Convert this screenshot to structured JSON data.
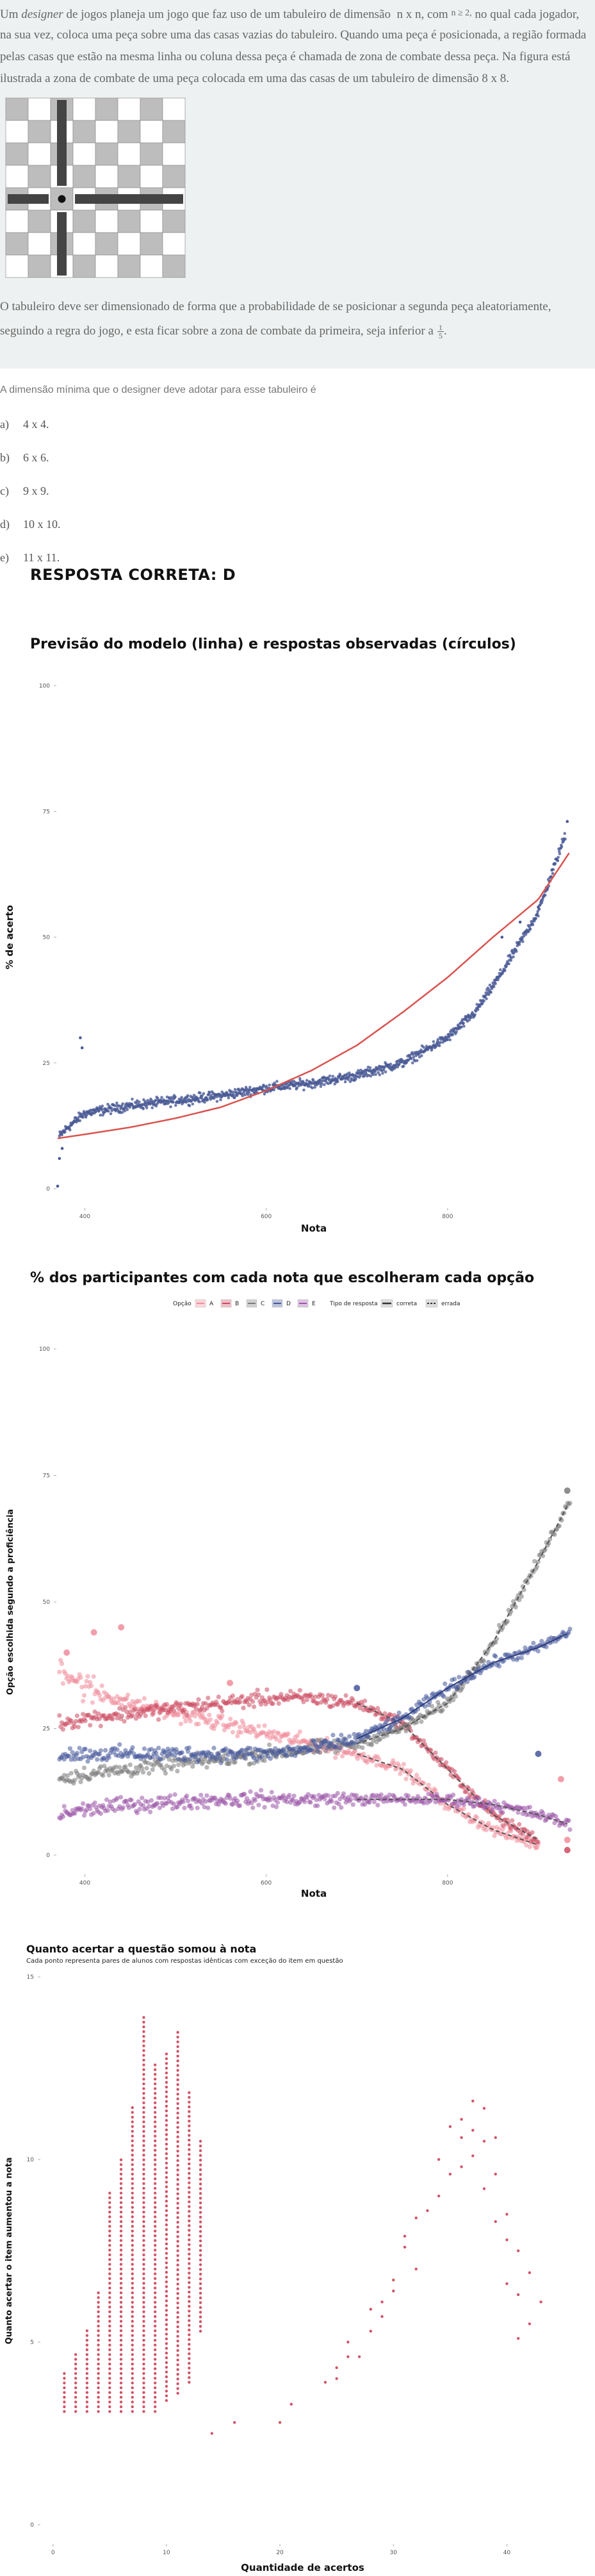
{
  "question": {
    "intro_prefix": "Um ",
    "intro_designer": "designer",
    "intro_part1": " de jogos planeja um jogo que faz uso de um tabuleiro de dimensão",
    "intro_nxn": "n x n, com",
    "intro_cond": "n ≥ 2,",
    "intro_part2": " no qual cada jogador,",
    "line2": "na sua vez, coloca uma peça sobre uma das casas vazias do tabuleiro. Quando uma peça é posicionada, a região formada",
    "line3": "pelas casas que estão na mesma linha ou coluna dessa peça é chamada de zona de combate dessa peça. Na figura está",
    "line4": "ilustrada a zona de combate de uma peça colocada em uma das casas de um tabuleiro de dimensão 8 x 8.",
    "para2_line1": "O tabuleiro deve ser dimensionado de forma que a probabilidade de se posicionar a segunda peça aleatoriamente,",
    "para2_line2": "seguindo a regra do jogo, e esta ficar sobre a zona de combate da primeira, seja inferior a",
    "frac_num": "1",
    "frac_den": "5",
    "para2_end": ".",
    "prompt": "A dimensão mínima que o designer deve adotar para esse tabuleiro é",
    "options": [
      {
        "letter": "a)",
        "text": "4 x 4."
      },
      {
        "letter": "b)",
        "text": "6 x 6."
      },
      {
        "letter": "c)",
        "text": "9 x 9."
      },
      {
        "letter": "d)",
        "text": "10 x 10."
      },
      {
        "letter": "e)",
        "text": "11 x 11."
      }
    ],
    "answer": "RESPOSTA CORRETA: D"
  },
  "chart_data": [
    {
      "type": "scatter",
      "title": "Previsão do modelo (linha) e respostas observadas (círculos)",
      "xlabel": "Nota",
      "ylabel": "% de acerto",
      "xticks": [
        "400",
        "600",
        "800"
      ],
      "yticks": [
        "0",
        "25",
        "50",
        "75",
        "100"
      ],
      "xlim": [
        370,
        935
      ],
      "ylim": [
        0,
        100
      ],
      "colors": {
        "points": "#4a5a95",
        "model": "#d9534f"
      },
      "model_curve": {
        "x": [
          370,
          400,
          450,
          500,
          550,
          600,
          650,
          700,
          750,
          800,
          850,
          900,
          935
        ],
        "y": [
          10,
          10.8,
          12.2,
          14,
          16.2,
          19.5,
          23.5,
          28.5,
          35,
          42,
          50,
          57.5,
          67
        ]
      },
      "observed_trend": {
        "x": [
          370,
          380,
          400,
          450,
          500,
          550,
          600,
          650,
          700,
          750,
          800,
          830,
          860,
          900,
          935
        ],
        "y": [
          10,
          12,
          15,
          16.5,
          17.5,
          18.5,
          20,
          21,
          22.5,
          25,
          30,
          35,
          43,
          55,
          73
        ]
      }
    },
    {
      "type": "scatter",
      "title": "% dos participantes com cada nota que escolheram cada opção",
      "xlabel": "Nota",
      "ylabel": "Opção escolhida segundo a proficiência",
      "xticks": [
        "400",
        "600",
        "800"
      ],
      "yticks": [
        "0",
        "25",
        "50",
        "75",
        "100"
      ],
      "xlim": [
        370,
        935
      ],
      "ylim": [
        0,
        100
      ],
      "legend": {
        "option_title": "Opção",
        "options": [
          {
            "name": "A",
            "color": "#f08d9b"
          },
          {
            "name": "B",
            "color": "#cc4a60"
          },
          {
            "name": "C",
            "color": "#7a7a7a"
          },
          {
            "name": "D",
            "color": "#46579a"
          },
          {
            "name": "E",
            "color": "#9b55a8"
          }
        ],
        "type_title": "Tipo de resposta",
        "types": [
          "correta",
          "errada"
        ]
      },
      "series": [
        {
          "name": "A",
          "x": [
            370,
            400,
            450,
            500,
            550,
            600,
            650,
            700,
            750,
            800,
            850,
            900
          ],
          "y": [
            38,
            33,
            30,
            28,
            26,
            24,
            22,
            20,
            17,
            10,
            5,
            2
          ]
        },
        {
          "name": "B",
          "x": [
            370,
            400,
            450,
            500,
            550,
            600,
            650,
            700,
            750,
            800,
            850,
            900
          ],
          "y": [
            26,
            27,
            28,
            29,
            30,
            31,
            31,
            30,
            26,
            17,
            8,
            3
          ]
        },
        {
          "name": "C",
          "x": [
            370,
            400,
            450,
            500,
            550,
            600,
            650,
            700,
            750,
            800,
            850,
            900,
            935
          ],
          "y": [
            15,
            16,
            17,
            18,
            19,
            20,
            21,
            22,
            25,
            30,
            42,
            58,
            70
          ]
        },
        {
          "name": "D",
          "x": [
            370,
            400,
            450,
            500,
            550,
            600,
            650,
            700,
            750,
            800,
            850,
            900,
            935
          ],
          "y": [
            20,
            20,
            20,
            20,
            20,
            20,
            21,
            23,
            27,
            33,
            38,
            41,
            44
          ]
        },
        {
          "name": "E",
          "x": [
            370,
            400,
            450,
            500,
            550,
            600,
            650,
            700,
            750,
            800,
            850,
            900,
            935
          ],
          "y": [
            8,
            9,
            10,
            10.5,
            11,
            11,
            11,
            11,
            11,
            11,
            10,
            8,
            6
          ]
        }
      ]
    },
    {
      "type": "scatter",
      "title": "Quanto acertar a questão somou à nota",
      "subtitle": "Cada ponto representa pares de alunos com respostas idênticas com exceção do item em questão",
      "xlabel": "Quantidade de acertos",
      "ylabel": "Quanto acertar o item aumentou a nota",
      "xticks": [
        "0",
        "10",
        "20",
        "30",
        "40"
      ],
      "yticks": [
        "0",
        "5",
        "10",
        "15"
      ],
      "xlim": [
        -1,
        45
      ],
      "ylim": [
        0,
        15
      ],
      "color": "#c9364b",
      "columns": [
        {
          "x": 1,
          "ymin": 3.1,
          "ymax": 4.2
        },
        {
          "x": 2,
          "ymin": 3.1,
          "ymax": 4.7
        },
        {
          "x": 3,
          "ymin": 3.1,
          "ymax": 5.4
        },
        {
          "x": 4,
          "ymin": 3.1,
          "ymax": 6.4
        },
        {
          "x": 5,
          "ymin": 3.1,
          "ymax": 9.1
        },
        {
          "x": 6,
          "ymin": 3.1,
          "ymax": 10.0
        },
        {
          "x": 7,
          "ymin": 3.1,
          "ymax": 11.5
        },
        {
          "x": 8,
          "ymin": 3.1,
          "ymax": 14.0
        },
        {
          "x": 9,
          "ymin": 3.1,
          "ymax": 12.6
        },
        {
          "x": 10,
          "ymin": 3.4,
          "ymax": 13.0
        },
        {
          "x": 11,
          "ymin": 3.6,
          "ymax": 13.6
        },
        {
          "x": 12,
          "ymin": 3.9,
          "ymax": 11.9
        },
        {
          "x": 13,
          "ymin": 5.3,
          "ymax": 10.5
        }
      ],
      "points": [
        [
          14,
          2.5
        ],
        [
          16,
          2.8
        ],
        [
          20,
          2.8
        ],
        [
          21,
          3.3
        ],
        [
          24,
          3.9
        ],
        [
          25,
          4.3
        ],
        [
          25,
          4.0
        ],
        [
          26,
          4.6
        ],
        [
          26,
          5.0
        ],
        [
          27,
          4.6
        ],
        [
          28,
          5.3
        ],
        [
          28,
          5.9
        ],
        [
          29,
          6.1
        ],
        [
          29,
          5.7
        ],
        [
          30,
          6.4
        ],
        [
          30,
          6.7
        ],
        [
          31,
          7.6
        ],
        [
          31,
          7.9
        ],
        [
          32,
          8.4
        ],
        [
          32,
          7.0
        ],
        [
          33,
          8.6
        ],
        [
          34,
          9.0
        ],
        [
          34,
          10.0
        ],
        [
          35,
          9.6
        ],
        [
          35,
          10.9
        ],
        [
          36,
          11.1
        ],
        [
          36,
          10.6
        ],
        [
          36,
          9.8
        ],
        [
          37,
          11.6
        ],
        [
          37,
          10.8
        ],
        [
          37,
          10.1
        ],
        [
          38,
          11.4
        ],
        [
          38,
          10.5
        ],
        [
          38,
          9.2
        ],
        [
          39,
          10.6
        ],
        [
          39,
          9.6
        ],
        [
          39,
          8.3
        ],
        [
          40,
          8.5
        ],
        [
          40,
          7.8
        ],
        [
          40,
          6.6
        ],
        [
          41,
          7.5
        ],
        [
          41,
          6.3
        ],
        [
          41,
          5.1
        ],
        [
          42,
          6.9
        ],
        [
          42,
          5.5
        ],
        [
          43,
          6.1
        ]
      ]
    }
  ]
}
